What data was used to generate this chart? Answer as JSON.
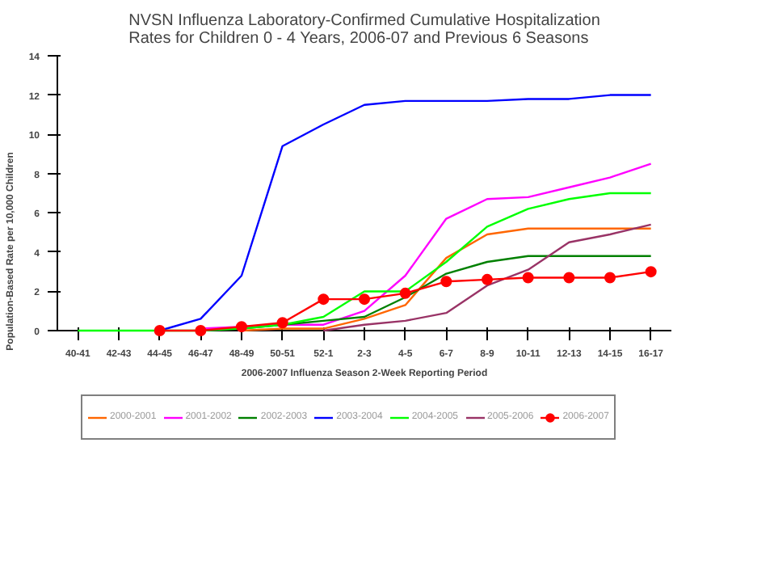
{
  "chart_data": {
    "type": "line",
    "title": "NVSN Influenza Laboratory-Confirmed Cumulative Hospitalization\nRates for Children 0 - 4 Years, 2006-07 and Previous 6 Seasons",
    "xlabel": "2006-2007 Influenza Season 2-Week Reporting Period",
    "ylabel": "Population-Based Rate per 10,000 Children",
    "categories": [
      "40-41",
      "42-43",
      "44-45",
      "46-47",
      "48-49",
      "50-51",
      "52-1",
      "2-3",
      "4-5",
      "6-7",
      "8-9",
      "10-11",
      "12-13",
      "14-15",
      "16-17"
    ],
    "ylim": [
      0,
      14
    ],
    "yticks": [
      0,
      2,
      4,
      6,
      8,
      10,
      12,
      14
    ],
    "grid": false,
    "legend": "bottom",
    "line_style": "solid",
    "series": [
      {
        "name": "2000-2001",
        "color": "#ff6600",
        "values": [
          null,
          null,
          null,
          null,
          0,
          0.1,
          0.1,
          0.6,
          1.3,
          3.7,
          4.9,
          5.2,
          5.2,
          5.2,
          5.2
        ]
      },
      {
        "name": "2001-2002",
        "color": "#ff00ff",
        "values": [
          null,
          null,
          null,
          0.1,
          0.2,
          0.3,
          0.3,
          1.0,
          2.8,
          5.7,
          6.7,
          6.8,
          7.3,
          7.8,
          8.5
        ]
      },
      {
        "name": "2002-2003",
        "color": "#008000",
        "values": [
          null,
          null,
          null,
          null,
          0.1,
          0.3,
          0.5,
          0.7,
          1.7,
          2.9,
          3.5,
          3.8,
          3.8,
          3.8,
          3.8
        ]
      },
      {
        "name": "2003-2004",
        "color": "#0000ff",
        "values": [
          null,
          null,
          0,
          0.6,
          2.8,
          9.4,
          10.5,
          11.5,
          11.7,
          11.7,
          11.7,
          11.8,
          11.8,
          12.0,
          12.0
        ]
      },
      {
        "name": "2004-2005",
        "color": "#00ff00",
        "values": [
          0,
          0,
          0,
          0,
          0.1,
          0.3,
          0.7,
          2.0,
          2.0,
          3.5,
          5.3,
          6.2,
          6.7,
          7.0,
          7.0
        ]
      },
      {
        "name": "2005-2006",
        "color": "#993366",
        "values": [
          null,
          null,
          null,
          null,
          null,
          null,
          0,
          0.3,
          0.5,
          0.9,
          2.3,
          3.1,
          4.5,
          4.9,
          5.4
        ]
      },
      {
        "name": "2006-2007",
        "color": "#ff0000",
        "marker": "circle",
        "values": [
          null,
          null,
          0,
          0,
          0.2,
          0.4,
          1.6,
          1.6,
          1.9,
          2.5,
          2.6,
          2.7,
          2.7,
          2.7,
          3.0
        ]
      }
    ]
  }
}
